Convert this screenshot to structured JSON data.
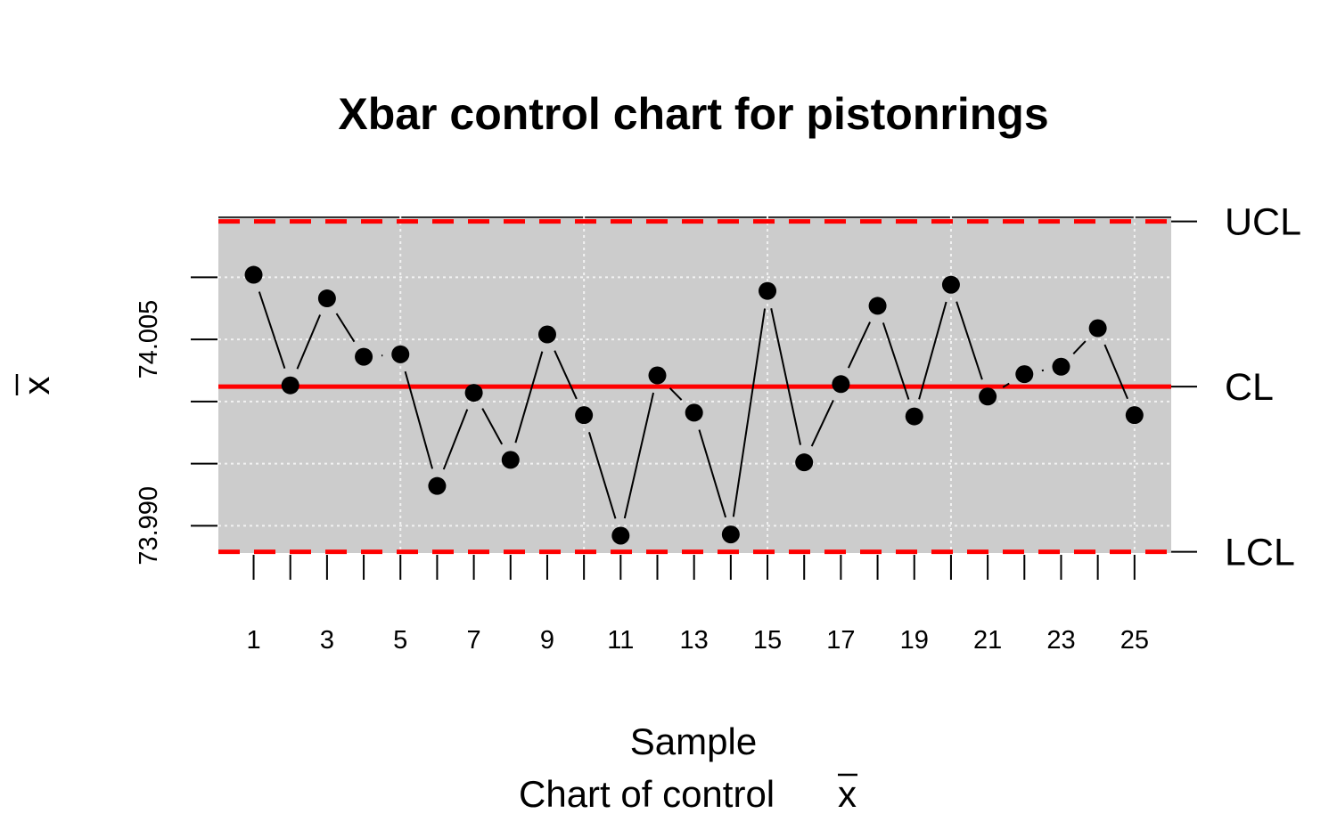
{
  "chart_data": {
    "type": "line",
    "title": "Xbar control chart for pistonrings",
    "xlabel": "Sample",
    "xlabel2_prefix": "Chart of control ",
    "ylabel": "x",
    "x": [
      1,
      2,
      3,
      4,
      5,
      6,
      7,
      8,
      9,
      10,
      11,
      12,
      13,
      14,
      15,
      16,
      17,
      18,
      19,
      20,
      21,
      22,
      23,
      24,
      25
    ],
    "x_tick_labels": [
      "1",
      "3",
      "5",
      "7",
      "9",
      "11",
      "13",
      "15",
      "17",
      "19",
      "21",
      "23",
      "25"
    ],
    "x_tick_values": [
      1,
      3,
      5,
      7,
      9,
      11,
      13,
      15,
      17,
      19,
      21,
      23,
      25
    ],
    "y_tick_labels": [
      "73.990",
      "74.005"
    ],
    "y_tick_values": [
      73.99,
      74.005
    ],
    "ylim": [
      73.9878,
      74.0149
    ],
    "xlim": [
      0.04,
      26.0
    ],
    "series": [
      {
        "values": [
          74.0102,
          74.0013,
          74.0083,
          74.0036,
          74.0038,
          73.9932,
          74.0007,
          73.9953,
          74.0054,
          73.9989,
          73.9892,
          74.0021,
          73.9991,
          73.9893,
          74.0089,
          73.9951,
          74.0014,
          74.0077,
          73.9988,
          74.0094,
          74.0004,
          74.0022,
          74.0028,
          74.0059,
          73.9989
        ]
      }
    ],
    "control_limits": {
      "UCL": {
        "label": "UCL",
        "value": 74.0145
      },
      "CL": {
        "label": "CL",
        "value": 74.0012
      },
      "LCL": {
        "label": "LCL",
        "value": 73.9879
      }
    },
    "grid": true,
    "colors": {
      "panel_bg": "#cccccc",
      "grid": "#f2f2f2",
      "limit_lines": "#ff0000",
      "points": "#000000"
    }
  }
}
